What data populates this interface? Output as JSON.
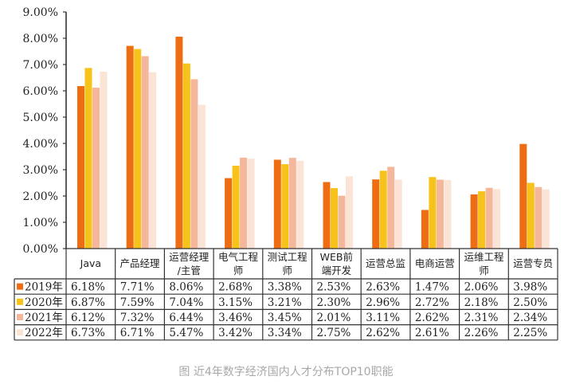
{
  "chart_data": {
    "type": "bar",
    "categories": [
      [
        "Java"
      ],
      [
        "产品经理"
      ],
      [
        "运营经理",
        "/主管"
      ],
      [
        "电气工程",
        "师"
      ],
      [
        "测试工程",
        "师"
      ],
      [
        "WEB前",
        "端开发"
      ],
      [
        "运营总监"
      ],
      [
        "电商运营"
      ],
      [
        "运维工程",
        "师"
      ],
      [
        "运营专员"
      ]
    ],
    "series": [
      {
        "name": "2019年",
        "color": "#ee6c12",
        "labels": [
          "6.18%",
          "7.71%",
          "8.06%",
          "2.68%",
          "3.38%",
          "2.53%",
          "2.63%",
          "1.47%",
          "2.06%",
          "3.98%"
        ],
        "values": [
          6.18,
          7.71,
          8.06,
          2.68,
          3.38,
          2.53,
          2.63,
          1.47,
          2.06,
          3.98
        ]
      },
      {
        "name": "2020年",
        "color": "#f7c21a",
        "labels": [
          "6.87%",
          "7.59%",
          "7.04%",
          "3.15%",
          "3.21%",
          "2.30%",
          "2.96%",
          "2.72%",
          "2.18%",
          "2.50%"
        ],
        "values": [
          6.87,
          7.59,
          7.04,
          3.15,
          3.21,
          2.3,
          2.96,
          2.72,
          2.18,
          2.5
        ]
      },
      {
        "name": "2021年",
        "color": "#f4b79b",
        "labels": [
          "6.12%",
          "7.32%",
          "6.44%",
          "3.46%",
          "3.45%",
          "2.01%",
          "3.11%",
          "2.62%",
          "2.31%",
          "2.34%"
        ],
        "values": [
          6.12,
          7.32,
          6.44,
          3.46,
          3.45,
          2.01,
          3.11,
          2.62,
          2.31,
          2.34
        ]
      },
      {
        "name": "2022年",
        "color": "#fbe3d5",
        "labels": [
          "6.73%",
          "6.71%",
          "5.47%",
          "3.42%",
          "3.34%",
          "2.75%",
          "2.62%",
          "2.61%",
          "2.26%",
          "2.25%"
        ],
        "values": [
          6.73,
          6.71,
          5.47,
          3.42,
          3.34,
          2.75,
          2.62,
          2.61,
          2.26,
          2.25
        ]
      }
    ],
    "ylim": [
      0,
      9
    ],
    "yticks": [
      "0.00%",
      "1.00%",
      "2.00%",
      "3.00%",
      "4.00%",
      "5.00%",
      "6.00%",
      "7.00%",
      "8.00%",
      "9.00%"
    ],
    "legend": "data-table",
    "caption": "图 近4年数字经济国内人才分布TOP10职能"
  }
}
